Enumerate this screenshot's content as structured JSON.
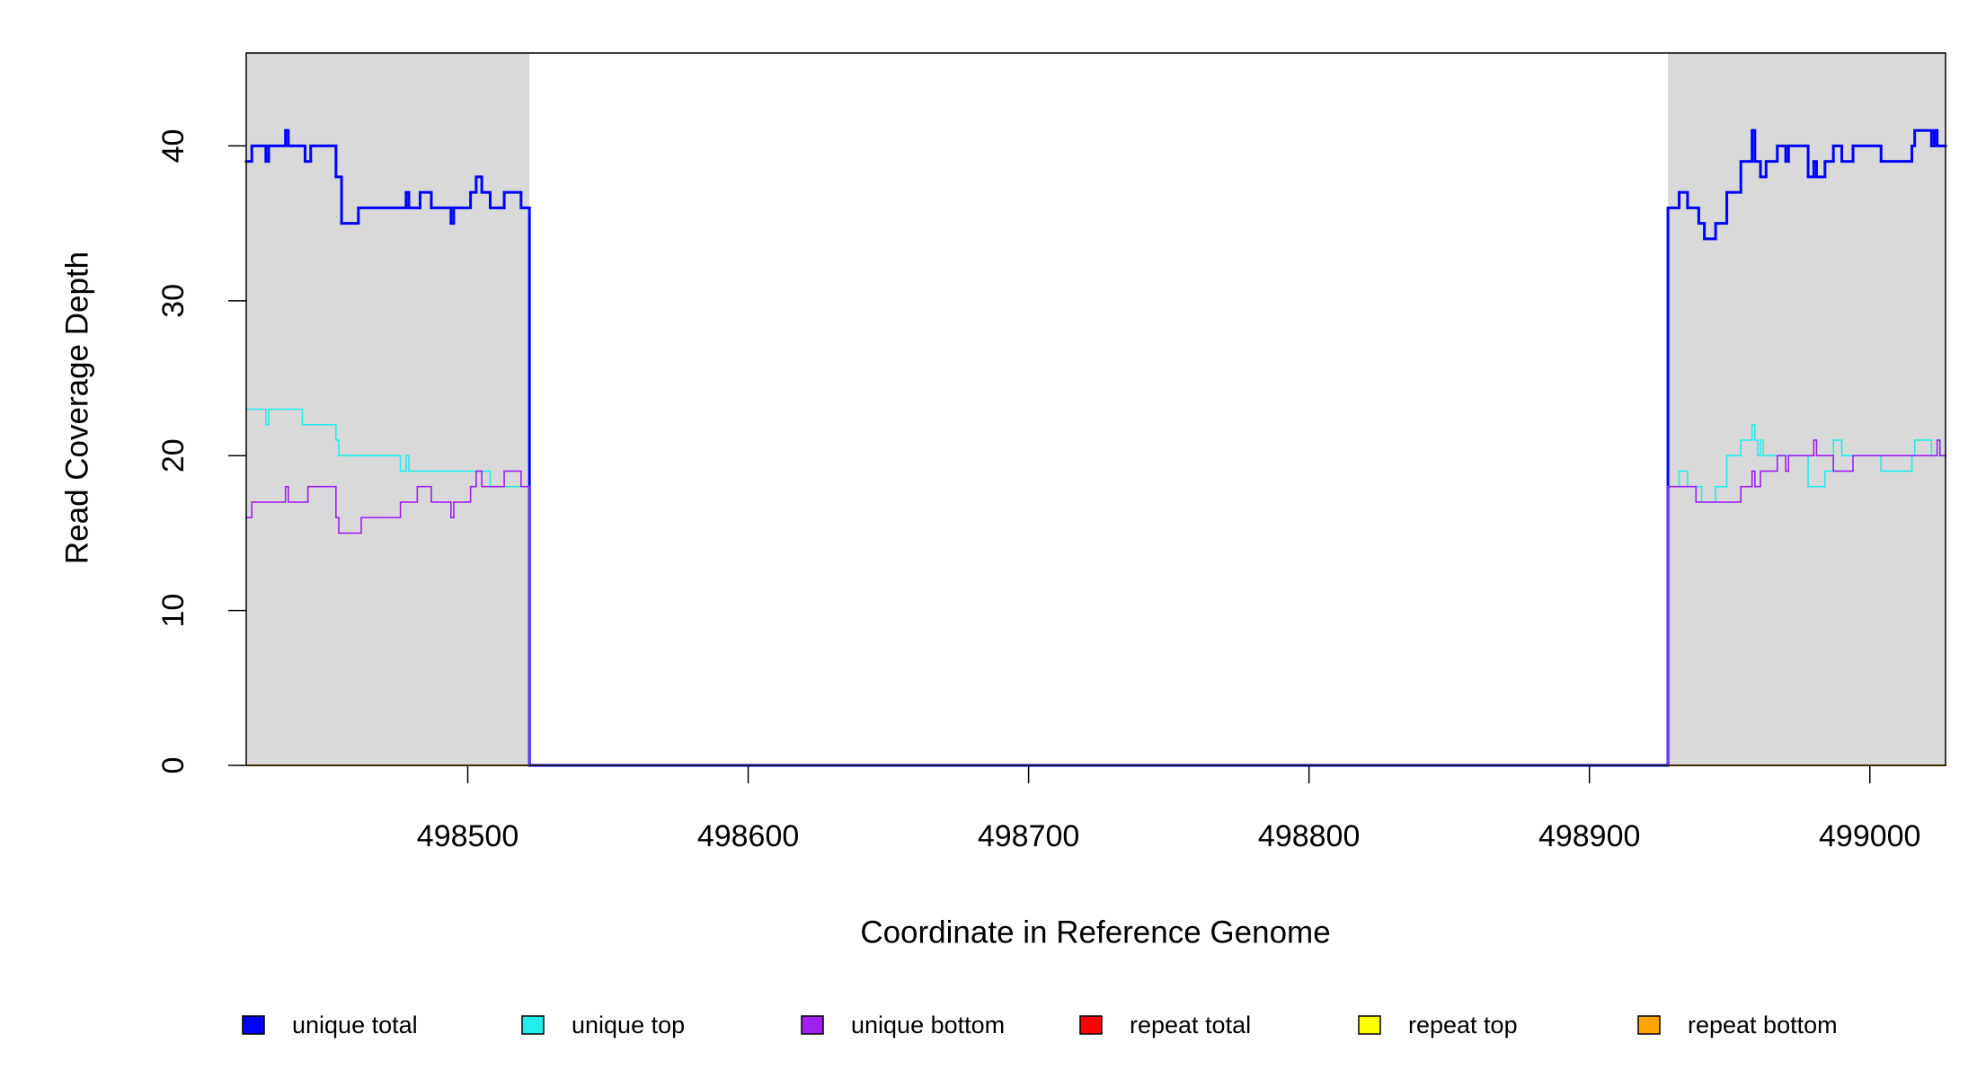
{
  "chart_data": {
    "type": "step",
    "xlabel": "Coordinate in Reference Genome",
    "ylabel": "Read Coverage Depth",
    "xlim": [
      498421,
      499027
    ],
    "ylim": [
      0,
      46
    ],
    "xticks": [
      498500,
      498600,
      498700,
      498800,
      498900,
      499000
    ],
    "yticks": [
      0,
      10,
      20,
      30,
      40
    ],
    "shaded_regions": [
      [
        498421,
        498522
      ],
      [
        498928,
        499027
      ]
    ],
    "shade_color": "#d9d9d9",
    "series": [
      {
        "name": "unique total",
        "color": "#0000ff",
        "width": 3,
        "x": [
          498421,
          498423,
          498428,
          498429,
          498435,
          498436,
          498442,
          498444,
          498453,
          498455,
          498461,
          498478,
          498479,
          498483,
          498487,
          498494,
          498495,
          498501,
          498503,
          498505,
          498508,
          498513,
          498519,
          498522,
          498928,
          498932,
          498935,
          498939,
          498941,
          498945,
          498949,
          498954,
          498958,
          498959,
          498961,
          498963,
          498967,
          498970,
          498971,
          498978,
          498980,
          498981,
          498984,
          498987,
          498990,
          498994,
          499004,
          499015,
          499016,
          499022,
          499023,
          499024,
          499027
        ],
        "values": [
          39,
          40,
          39,
          40,
          41,
          40,
          39,
          40,
          38,
          35,
          36,
          37,
          36,
          37,
          36,
          35,
          36,
          37,
          38,
          37,
          36,
          37,
          36,
          0,
          36,
          37,
          36,
          35,
          34,
          35,
          37,
          39,
          41,
          39,
          38,
          39,
          40,
          39,
          40,
          38,
          39,
          38,
          39,
          40,
          39,
          40,
          39,
          40,
          41,
          40,
          41,
          40,
          40
        ]
      },
      {
        "name": "unique top",
        "color": "#22eeee",
        "width": 1.6,
        "x": [
          498421,
          498428,
          498429,
          498441,
          498453,
          498454,
          498476,
          498478,
          498479,
          498508,
          498522,
          498928,
          498932,
          498935,
          498940,
          498945,
          498949,
          498954,
          498958,
          498959,
          498960,
          498961,
          498962,
          498978,
          498984,
          498987,
          498990,
          499004,
          499015,
          499016,
          499022,
          499024,
          499025,
          499027
        ],
        "values": [
          23,
          22,
          23,
          22,
          21,
          20,
          19,
          20,
          19,
          18,
          0,
          18,
          19,
          18,
          17,
          18,
          20,
          21,
          22,
          21,
          20,
          21,
          20,
          18,
          19,
          21,
          20,
          19,
          20,
          21,
          20,
          21,
          20,
          20
        ]
      },
      {
        "name": "unique bottom",
        "color": "#a020f0",
        "width": 1.6,
        "x": [
          498421,
          498423,
          498435,
          498436,
          498443,
          498453,
          498454,
          498462,
          498476,
          498482,
          498487,
          498494,
          498495,
          498501,
          498503,
          498505,
          498513,
          498519,
          498522,
          498928,
          498938,
          498954,
          498958,
          498959,
          498961,
          498967,
          498970,
          498971,
          498980,
          498981,
          498987,
          498994,
          499024,
          499025,
          499027
        ],
        "values": [
          16,
          17,
          18,
          17,
          18,
          16,
          15,
          16,
          17,
          18,
          17,
          16,
          17,
          18,
          19,
          18,
          19,
          18,
          0,
          18,
          17,
          18,
          19,
          18,
          19,
          20,
          19,
          20,
          21,
          20,
          19,
          20,
          21,
          20,
          20
        ]
      },
      {
        "name": "repeat total",
        "color": "#ff0000",
        "width": 1.6,
        "x": [
          498421,
          498522,
          498928,
          499027
        ],
        "values": [
          0,
          null,
          0,
          0
        ]
      },
      {
        "name": "repeat top",
        "color": "#ffff00",
        "width": 1.6,
        "x": [
          498421,
          498522,
          498928,
          499027
        ],
        "values": [
          0,
          null,
          0,
          0
        ]
      },
      {
        "name": "repeat bottom",
        "color": "#ffa500",
        "width": 1.6,
        "x": [
          498421,
          498522,
          498928,
          499027
        ],
        "values": [
          0,
          null,
          0,
          0
        ]
      }
    ]
  }
}
